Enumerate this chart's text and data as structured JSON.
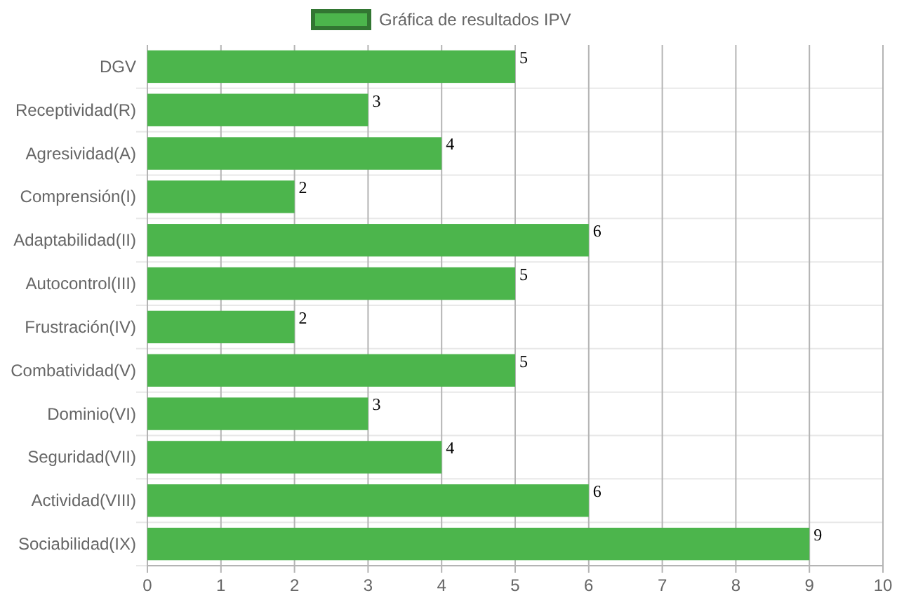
{
  "chart_data": {
    "type": "bar",
    "orientation": "horizontal",
    "categories": [
      "DGV",
      "Receptividad(R)",
      "Agresividad(A)",
      "Comprensión(I)",
      "Adaptabilidad(II)",
      "Autocontrol(III)",
      "Frustración(IV)",
      "Combatividad(V)",
      "Dominio(VI)",
      "Seguridad(VII)",
      "Actividad(VIII)",
      "Sociabilidad(IX)"
    ],
    "series": [
      {
        "name": "Gráfica de resultados IPV",
        "color": "#4cb54c",
        "values": [
          5,
          3,
          4,
          2,
          6,
          5,
          2,
          5,
          3,
          4,
          6,
          9
        ]
      }
    ],
    "xlim": [
      0,
      10
    ],
    "xticks": [
      0,
      1,
      2,
      3,
      4,
      5,
      6,
      7,
      8,
      9,
      10
    ],
    "grid": true,
    "legend": "top",
    "data_labels": true
  }
}
